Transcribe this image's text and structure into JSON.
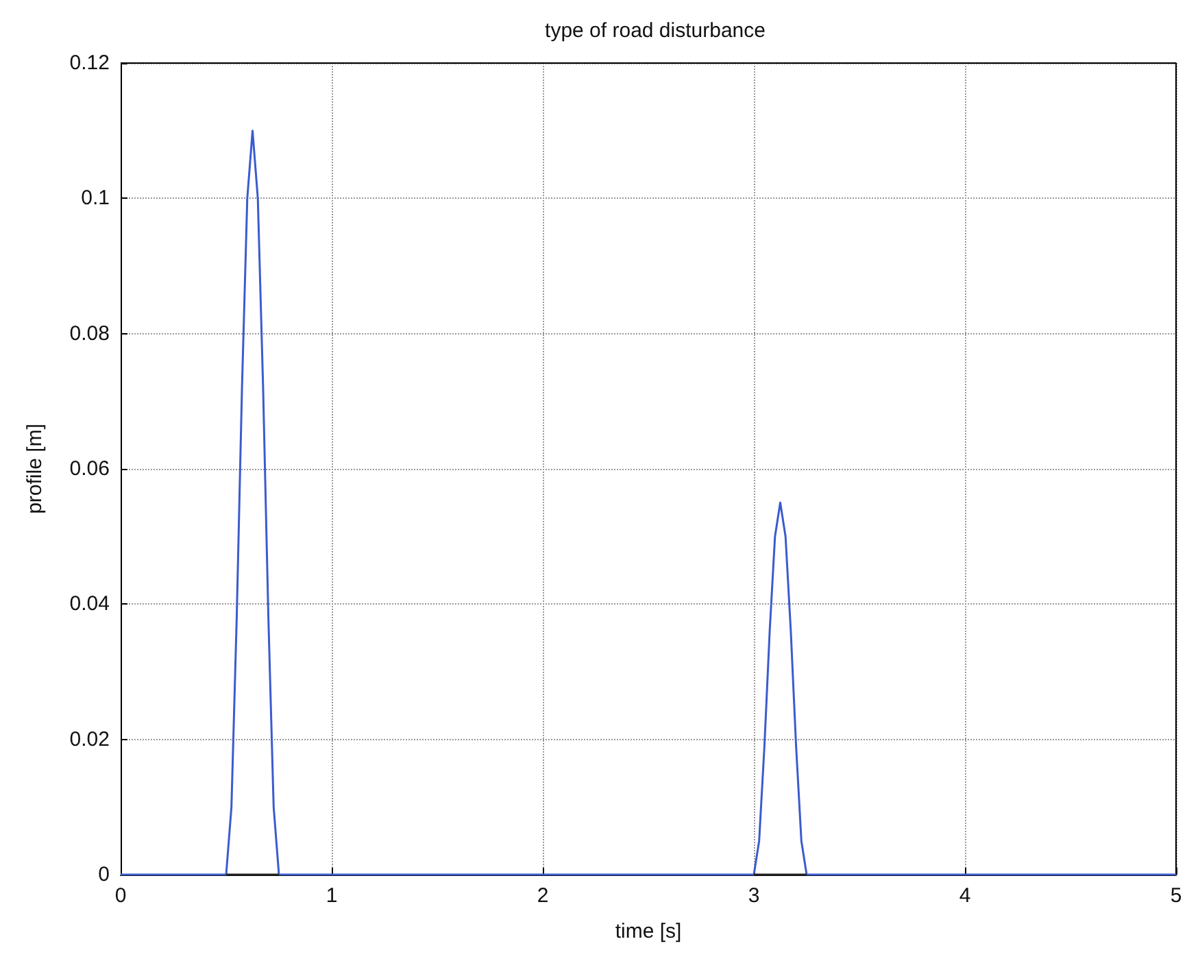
{
  "chart_data": {
    "type": "line",
    "title": "type of road disturbance",
    "xlabel": "time [s]",
    "ylabel": "profile [m]",
    "series": [
      {
        "color": "#3b5bd0",
        "x": [
          0,
          0.5,
          0.525,
          0.55,
          0.575,
          0.6,
          0.625,
          0.65,
          0.675,
          0.7,
          0.725,
          0.75,
          3.0,
          3.025,
          3.05,
          3.075,
          3.1,
          3.125,
          3.15,
          3.175,
          3.2,
          3.225,
          3.25,
          5
        ],
        "values": [
          0,
          0,
          0.01,
          0.038,
          0.072,
          0.1,
          0.11,
          0.1,
          0.072,
          0.038,
          0.01,
          0,
          0,
          0.005,
          0.019,
          0.036,
          0.05,
          0.055,
          0.05,
          0.036,
          0.019,
          0.005,
          0,
          0
        ]
      },
      {
        "color": "#222222",
        "x": [
          0.5,
          0.75,
          null,
          3.0,
          3.25
        ],
        "values": [
          0,
          0,
          null,
          0,
          0
        ]
      }
    ],
    "xlim": [
      0,
      5
    ],
    "xticks": [
      0,
      1,
      2,
      3,
      4,
      5
    ],
    "ylim": [
      0,
      0.12
    ],
    "yticks": [
      0,
      0.02,
      0.04,
      0.06,
      0.08,
      0.1,
      0.12
    ],
    "grid": true,
    "marker": "none",
    "line_style": "solid"
  }
}
